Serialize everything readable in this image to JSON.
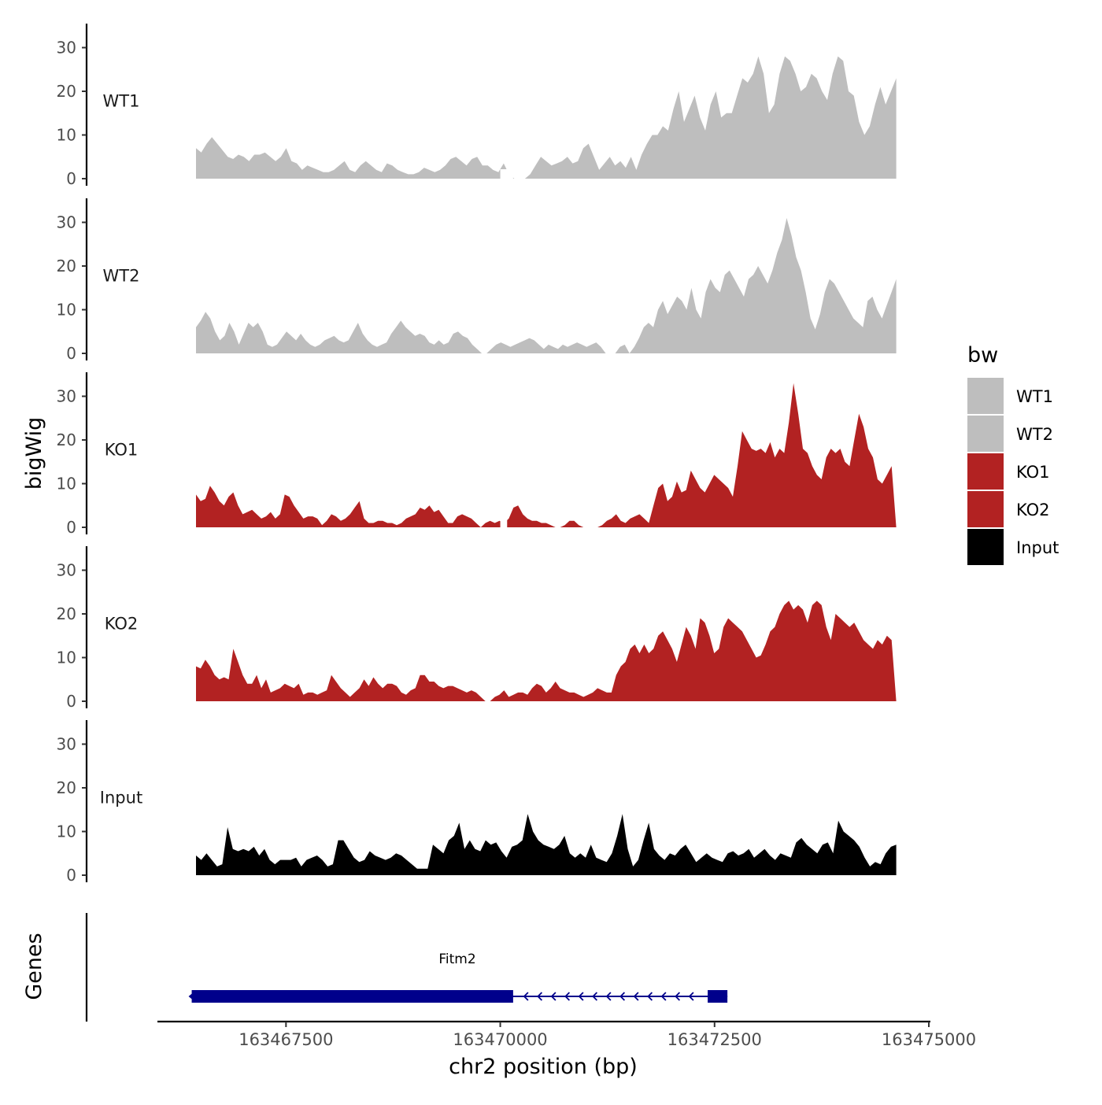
{
  "chart_data": {
    "type": "area",
    "ylabel": "bigWig",
    "xlabel": "chr2 position (bp)",
    "genes_label": "Genes",
    "xlim": [
      163466000,
      163475000
    ],
    "ylim": [
      0,
      35
    ],
    "y_ticks": [
      0,
      10,
      20,
      30
    ],
    "y_tick_labels": [
      "0",
      "10",
      "20",
      "30"
    ],
    "x_ticks": [
      163467500,
      163470000,
      163472500,
      163475000
    ],
    "x_tick_labels": [
      "163467500",
      "163470000",
      "163472500",
      "163475000"
    ],
    "legend": {
      "title": "bw",
      "position": "right",
      "entries": [
        {
          "name": "WT1",
          "color": "#bebebe"
        },
        {
          "name": "WT2",
          "color": "#bebebe"
        },
        {
          "name": "KO1",
          "color": "#b22222"
        },
        {
          "name": "KO2",
          "color": "#b22222"
        },
        {
          "name": "Input",
          "color": "#000000"
        }
      ]
    },
    "series": [
      {
        "name": "WT1",
        "color": "#bebebe",
        "x_start": 163466450,
        "x_end": 163474620,
        "values": [
          7,
          6,
          8,
          9.5,
          8,
          6.5,
          5,
          4.5,
          5.5,
          5,
          4,
          5.5,
          5.5,
          6,
          5,
          4,
          5,
          7,
          4,
          3.5,
          2,
          3,
          2.5,
          2,
          1.5,
          1.5,
          2,
          3,
          4,
          2,
          1.5,
          3,
          4,
          3,
          2,
          1.5,
          3.5,
          3,
          2,
          1.5,
          1,
          1,
          1.5,
          2.5,
          2,
          1.5,
          2,
          3,
          4.5,
          5,
          4,
          3,
          4.5,
          5,
          3,
          3,
          2,
          1.5,
          3.5,
          1,
          0,
          0,
          0,
          1,
          3,
          5,
          4,
          3,
          3.5,
          4,
          5,
          3.5,
          4,
          7,
          8,
          5,
          2,
          3.5,
          5,
          3,
          4,
          2.5,
          5,
          2,
          5.5,
          8,
          10,
          10,
          12,
          11,
          16,
          20,
          13,
          16,
          19,
          14,
          11,
          17,
          20,
          14,
          15,
          15,
          19,
          23,
          22,
          24,
          28,
          24,
          15,
          17,
          24,
          28,
          27,
          24,
          20,
          21,
          24,
          23,
          20,
          18,
          24,
          28,
          27,
          20,
          19,
          13,
          10,
          12,
          17,
          21,
          17,
          20,
          23
        ],
        "gaps": [
          [
            163470000,
            163470150
          ]
        ]
      },
      {
        "name": "WT2",
        "color": "#bebebe",
        "x_start": 163466450,
        "x_end": 163474620,
        "values": [
          6,
          7.5,
          9.5,
          8,
          5,
          3,
          4,
          7,
          5,
          2,
          4.5,
          7,
          6,
          7,
          5,
          2,
          1.5,
          2,
          3.5,
          5,
          4,
          3,
          4.5,
          3,
          2,
          1.5,
          2,
          3,
          3.5,
          4,
          3,
          2.5,
          3,
          5,
          7,
          4.5,
          3,
          2,
          1.5,
          2,
          2.5,
          4.5,
          6,
          7.5,
          6,
          5,
          4,
          4.5,
          4,
          2.5,
          2,
          3,
          2,
          2.5,
          4.5,
          5,
          4,
          3.5,
          2,
          1,
          0,
          0,
          1,
          2,
          2.5,
          2,
          1.5,
          2,
          2.5,
          3,
          3.5,
          3,
          2,
          1,
          2,
          1.5,
          1,
          2,
          1.5,
          2,
          2.5,
          2,
          1.5,
          2,
          2.5,
          1.5,
          0,
          0,
          0,
          1.5,
          2,
          0,
          1.5,
          3.5,
          6,
          7,
          6,
          10,
          12,
          9,
          11,
          13,
          12,
          10,
          15,
          10,
          8,
          14,
          17,
          15,
          14,
          18,
          19,
          17,
          15,
          13,
          17,
          18,
          20,
          18,
          16,
          19,
          23,
          26,
          31,
          27,
          22,
          19,
          14,
          8,
          5.5,
          9,
          14,
          17,
          16,
          14,
          12,
          10,
          8,
          7,
          6,
          12,
          13,
          10,
          8,
          11,
          14,
          17
        ]
      },
      {
        "name": "KO1",
        "color": "#b22222",
        "x_start": 163466450,
        "x_end": 163474620,
        "values": [
          7.5,
          6,
          6.5,
          9.5,
          8,
          6,
          5,
          7,
          8,
          5,
          3,
          3.5,
          4,
          3,
          2,
          2.5,
          3.5,
          2,
          3,
          7.5,
          7,
          5,
          3.5,
          2,
          2.5,
          2.5,
          2,
          0.5,
          1.5,
          3,
          2.5,
          1.5,
          2,
          3,
          4.5,
          6,
          2,
          1,
          1,
          1.5,
          1.5,
          1,
          1,
          0.5,
          1,
          2,
          2.5,
          3,
          4.5,
          4,
          5,
          3.5,
          4,
          2.5,
          1,
          1,
          2.5,
          3,
          2.5,
          2,
          1,
          0,
          1,
          1.5,
          1,
          1.5,
          1,
          2,
          4.5,
          5,
          3,
          2,
          1.5,
          1.5,
          1,
          1,
          0.5,
          0,
          0,
          0.5,
          1.5,
          1.5,
          0.5,
          0,
          0,
          0,
          0,
          0.5,
          1.5,
          2,
          3,
          1.5,
          1,
          2,
          2.5,
          3,
          2,
          1,
          5,
          9,
          10,
          6,
          7,
          10.5,
          8,
          8.5,
          13,
          11,
          9,
          8,
          10,
          12,
          11,
          10,
          9,
          7,
          14,
          22,
          20,
          18,
          17.5,
          18,
          17,
          19.5,
          16,
          18,
          17,
          24,
          33,
          26,
          18,
          17,
          14,
          12,
          11,
          16,
          18,
          17,
          18,
          15,
          14,
          20,
          26,
          23,
          18,
          16,
          11,
          10,
          12,
          14,
          0
        ],
        "gaps": [
          [
            163470000,
            163470080
          ]
        ]
      },
      {
        "name": "KO2",
        "color": "#b22222",
        "x_start": 163466450,
        "x_end": 163474620,
        "values": [
          8,
          7.5,
          9.5,
          8,
          6,
          5,
          5.5,
          5,
          12,
          9,
          6,
          4,
          4,
          6,
          3,
          5,
          2,
          2.5,
          3,
          4,
          3.5,
          3,
          4,
          1.5,
          2,
          2,
          1.5,
          2,
          2.5,
          6,
          4.5,
          3,
          2,
          1,
          2,
          3,
          5,
          3.5,
          5.5,
          4,
          3,
          4,
          4,
          3.5,
          2,
          1.5,
          2.5,
          3,
          6,
          6,
          4.5,
          4.5,
          3.5,
          3,
          3.5,
          3.5,
          3,
          2.5,
          2,
          2.5,
          2,
          1,
          0,
          0,
          1,
          1.5,
          2.5,
          1,
          1.5,
          2,
          2,
          1.5,
          3,
          4,
          3.5,
          2,
          3,
          4.5,
          3,
          2.5,
          2,
          2,
          1.5,
          1,
          1.5,
          2,
          3,
          2.5,
          2,
          2,
          6,
          8,
          9,
          12,
          13,
          11,
          13,
          11,
          12,
          15,
          16,
          14,
          12,
          9,
          13,
          17,
          15,
          12,
          19,
          18,
          15,
          11,
          12,
          17,
          19,
          18,
          17,
          16,
          14,
          12,
          10,
          10.5,
          13,
          16,
          17,
          20,
          22,
          23,
          21,
          22,
          21,
          18,
          22,
          23,
          22,
          17,
          14,
          20,
          19,
          18,
          17,
          18,
          16,
          14,
          13,
          12,
          14,
          13,
          15,
          14,
          0
        ]
      },
      {
        "name": "Input",
        "color": "#000000",
        "x_start": 163466450,
        "x_end": 163474620,
        "values": [
          4.5,
          3.5,
          5,
          3.5,
          2,
          2.5,
          11,
          6,
          5.5,
          6,
          5.5,
          6.5,
          4.5,
          6,
          3.5,
          2.5,
          3.5,
          3.5,
          3.5,
          4,
          2,
          3.5,
          4,
          4.5,
          3.5,
          2,
          2.5,
          8,
          8,
          6,
          4,
          3,
          3.5,
          5.5,
          4.5,
          4,
          3.5,
          4,
          5,
          4.5,
          3.5,
          2.5,
          1.5,
          1.5,
          1.5,
          7,
          6,
          5,
          8,
          9,
          12,
          6,
          8,
          6,
          5.5,
          8,
          7,
          7.5,
          5.5,
          4,
          6.5,
          7,
          8,
          14,
          10,
          8,
          7,
          6.5,
          6,
          7,
          9,
          5,
          4,
          5,
          4,
          7,
          4,
          3.5,
          3,
          5,
          9,
          14,
          6,
          2,
          3.5,
          8,
          12,
          6,
          4.5,
          3.5,
          5,
          4.5,
          6,
          7,
          5,
          3,
          4,
          5,
          4,
          3.5,
          3,
          5,
          5.5,
          4.5,
          5,
          6,
          4,
          5,
          6,
          4.5,
          3.5,
          5,
          4.5,
          4,
          7.5,
          8.5,
          7,
          6,
          5,
          7,
          7.5,
          5,
          12.5,
          10,
          9,
          8,
          6.5,
          4,
          2,
          3,
          2.5,
          5,
          6.5,
          7
        ]
      }
    ],
    "genes": [
      {
        "name": "Fitm2",
        "strand": "-",
        "start": 163466400,
        "end": 163472650,
        "exons": [
          [
            163466400,
            163470150
          ],
          [
            163472420,
            163472650
          ]
        ]
      }
    ]
  }
}
